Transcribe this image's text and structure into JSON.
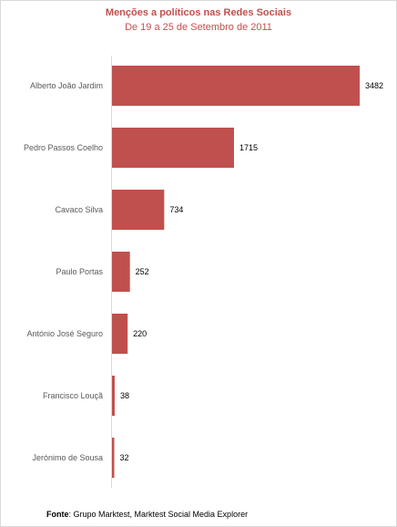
{
  "chart_data": {
    "type": "bar",
    "orientation": "horizontal",
    "title": "Menções a políticos nas Redes Sociais",
    "subtitle": "De 19 a 25 de Setembro de 2011",
    "categories": [
      "Alberto João Jardim",
      "Pedro Passos Coelho",
      "Cavaco Silva",
      "Paulo Portas",
      "António José Seguro",
      "Francisco Louçã",
      "Jerónimo de Sousa"
    ],
    "values": [
      3482,
      1715,
      734,
      252,
      220,
      38,
      32
    ],
    "data_labels": [
      "3482",
      "1715",
      "734",
      "252",
      "220",
      "38",
      "32"
    ],
    "bar_color": "#c0504d",
    "xlim": [
      0,
      3482
    ],
    "grid": false,
    "legend": "none"
  },
  "footer": {
    "source_label": "Fonte",
    "source_text": ": Grupo Marktest, Marktest Social Media Explorer"
  }
}
